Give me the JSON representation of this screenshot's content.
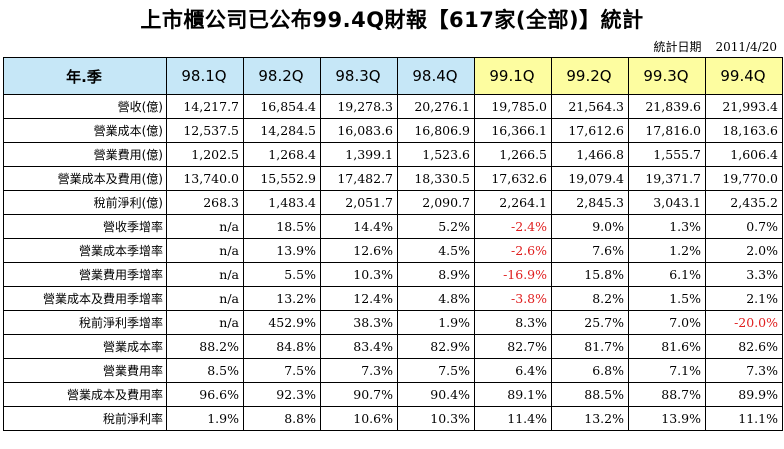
{
  "title": "上市櫃公司已公布99.4Q財報【617家(全部)】統計",
  "stat_date_label": "統計日期",
  "stat_date": "2011/4/20",
  "header": {
    "first": "年.季",
    "quarters": [
      "98.1Q",
      "98.2Q",
      "98.3Q",
      "98.4Q",
      "99.1Q",
      "99.2Q",
      "99.3Q",
      "99.4Q"
    ]
  },
  "highlight_colors": {
    "header_blue": "#c6e7f7",
    "header_yellow": "#fdfda0",
    "negative": "#e02020"
  },
  "rows": [
    {
      "label": "營收(億)",
      "values": [
        "14,217.7",
        "16,854.4",
        "19,278.3",
        "20,276.1",
        "19,785.0",
        "21,564.3",
        "21,839.6",
        "21,993.4"
      ]
    },
    {
      "label": "營業成本(億)",
      "values": [
        "12,537.5",
        "14,284.5",
        "16,083.6",
        "16,806.9",
        "16,366.1",
        "17,612.6",
        "17,816.0",
        "18,163.6"
      ]
    },
    {
      "label": "營業費用(億)",
      "values": [
        "1,202.5",
        "1,268.4",
        "1,399.1",
        "1,523.6",
        "1,266.5",
        "1,466.8",
        "1,555.7",
        "1,606.4"
      ]
    },
    {
      "label": "營業成本及費用(億)",
      "values": [
        "13,740.0",
        "15,552.9",
        "17,482.7",
        "18,330.5",
        "17,632.6",
        "19,079.4",
        "19,371.7",
        "19,770.0"
      ]
    },
    {
      "label": "稅前淨利(億)",
      "values": [
        "268.3",
        "1,483.4",
        "2,051.7",
        "2,090.7",
        "2,264.1",
        "2,845.3",
        "3,043.1",
        "2,435.2"
      ]
    },
    {
      "label": "營收季增率",
      "values": [
        "n/a",
        "18.5%",
        "14.4%",
        "5.2%",
        "-2.4%",
        "9.0%",
        "1.3%",
        "0.7%"
      ]
    },
    {
      "label": "營業成本季增率",
      "values": [
        "n/a",
        "13.9%",
        "12.6%",
        "4.5%",
        "-2.6%",
        "7.6%",
        "1.2%",
        "2.0%"
      ]
    },
    {
      "label": "營業費用季增率",
      "values": [
        "n/a",
        "5.5%",
        "10.3%",
        "8.9%",
        "-16.9%",
        "15.8%",
        "6.1%",
        "3.3%"
      ]
    },
    {
      "label": "營業成本及費用季增率",
      "values": [
        "n/a",
        "13.2%",
        "12.4%",
        "4.8%",
        "-3.8%",
        "8.2%",
        "1.5%",
        "2.1%"
      ]
    },
    {
      "label": "稅前淨利季增率",
      "values": [
        "n/a",
        "452.9%",
        "38.3%",
        "1.9%",
        "8.3%",
        "25.7%",
        "7.0%",
        "-20.0%"
      ]
    },
    {
      "label": "營業成本率",
      "values": [
        "88.2%",
        "84.8%",
        "83.4%",
        "82.9%",
        "82.7%",
        "81.7%",
        "81.6%",
        "82.6%"
      ]
    },
    {
      "label": "營業費用率",
      "values": [
        "8.5%",
        "7.5%",
        "7.3%",
        "7.5%",
        "6.4%",
        "6.8%",
        "7.1%",
        "7.3%"
      ]
    },
    {
      "label": "營業成本及費用率",
      "values": [
        "96.6%",
        "92.3%",
        "90.7%",
        "90.4%",
        "89.1%",
        "88.5%",
        "88.7%",
        "89.9%"
      ]
    },
    {
      "label": "稅前淨利率",
      "values": [
        "1.9%",
        "8.8%",
        "10.6%",
        "10.3%",
        "11.4%",
        "13.2%",
        "13.9%",
        "11.1%"
      ]
    }
  ]
}
